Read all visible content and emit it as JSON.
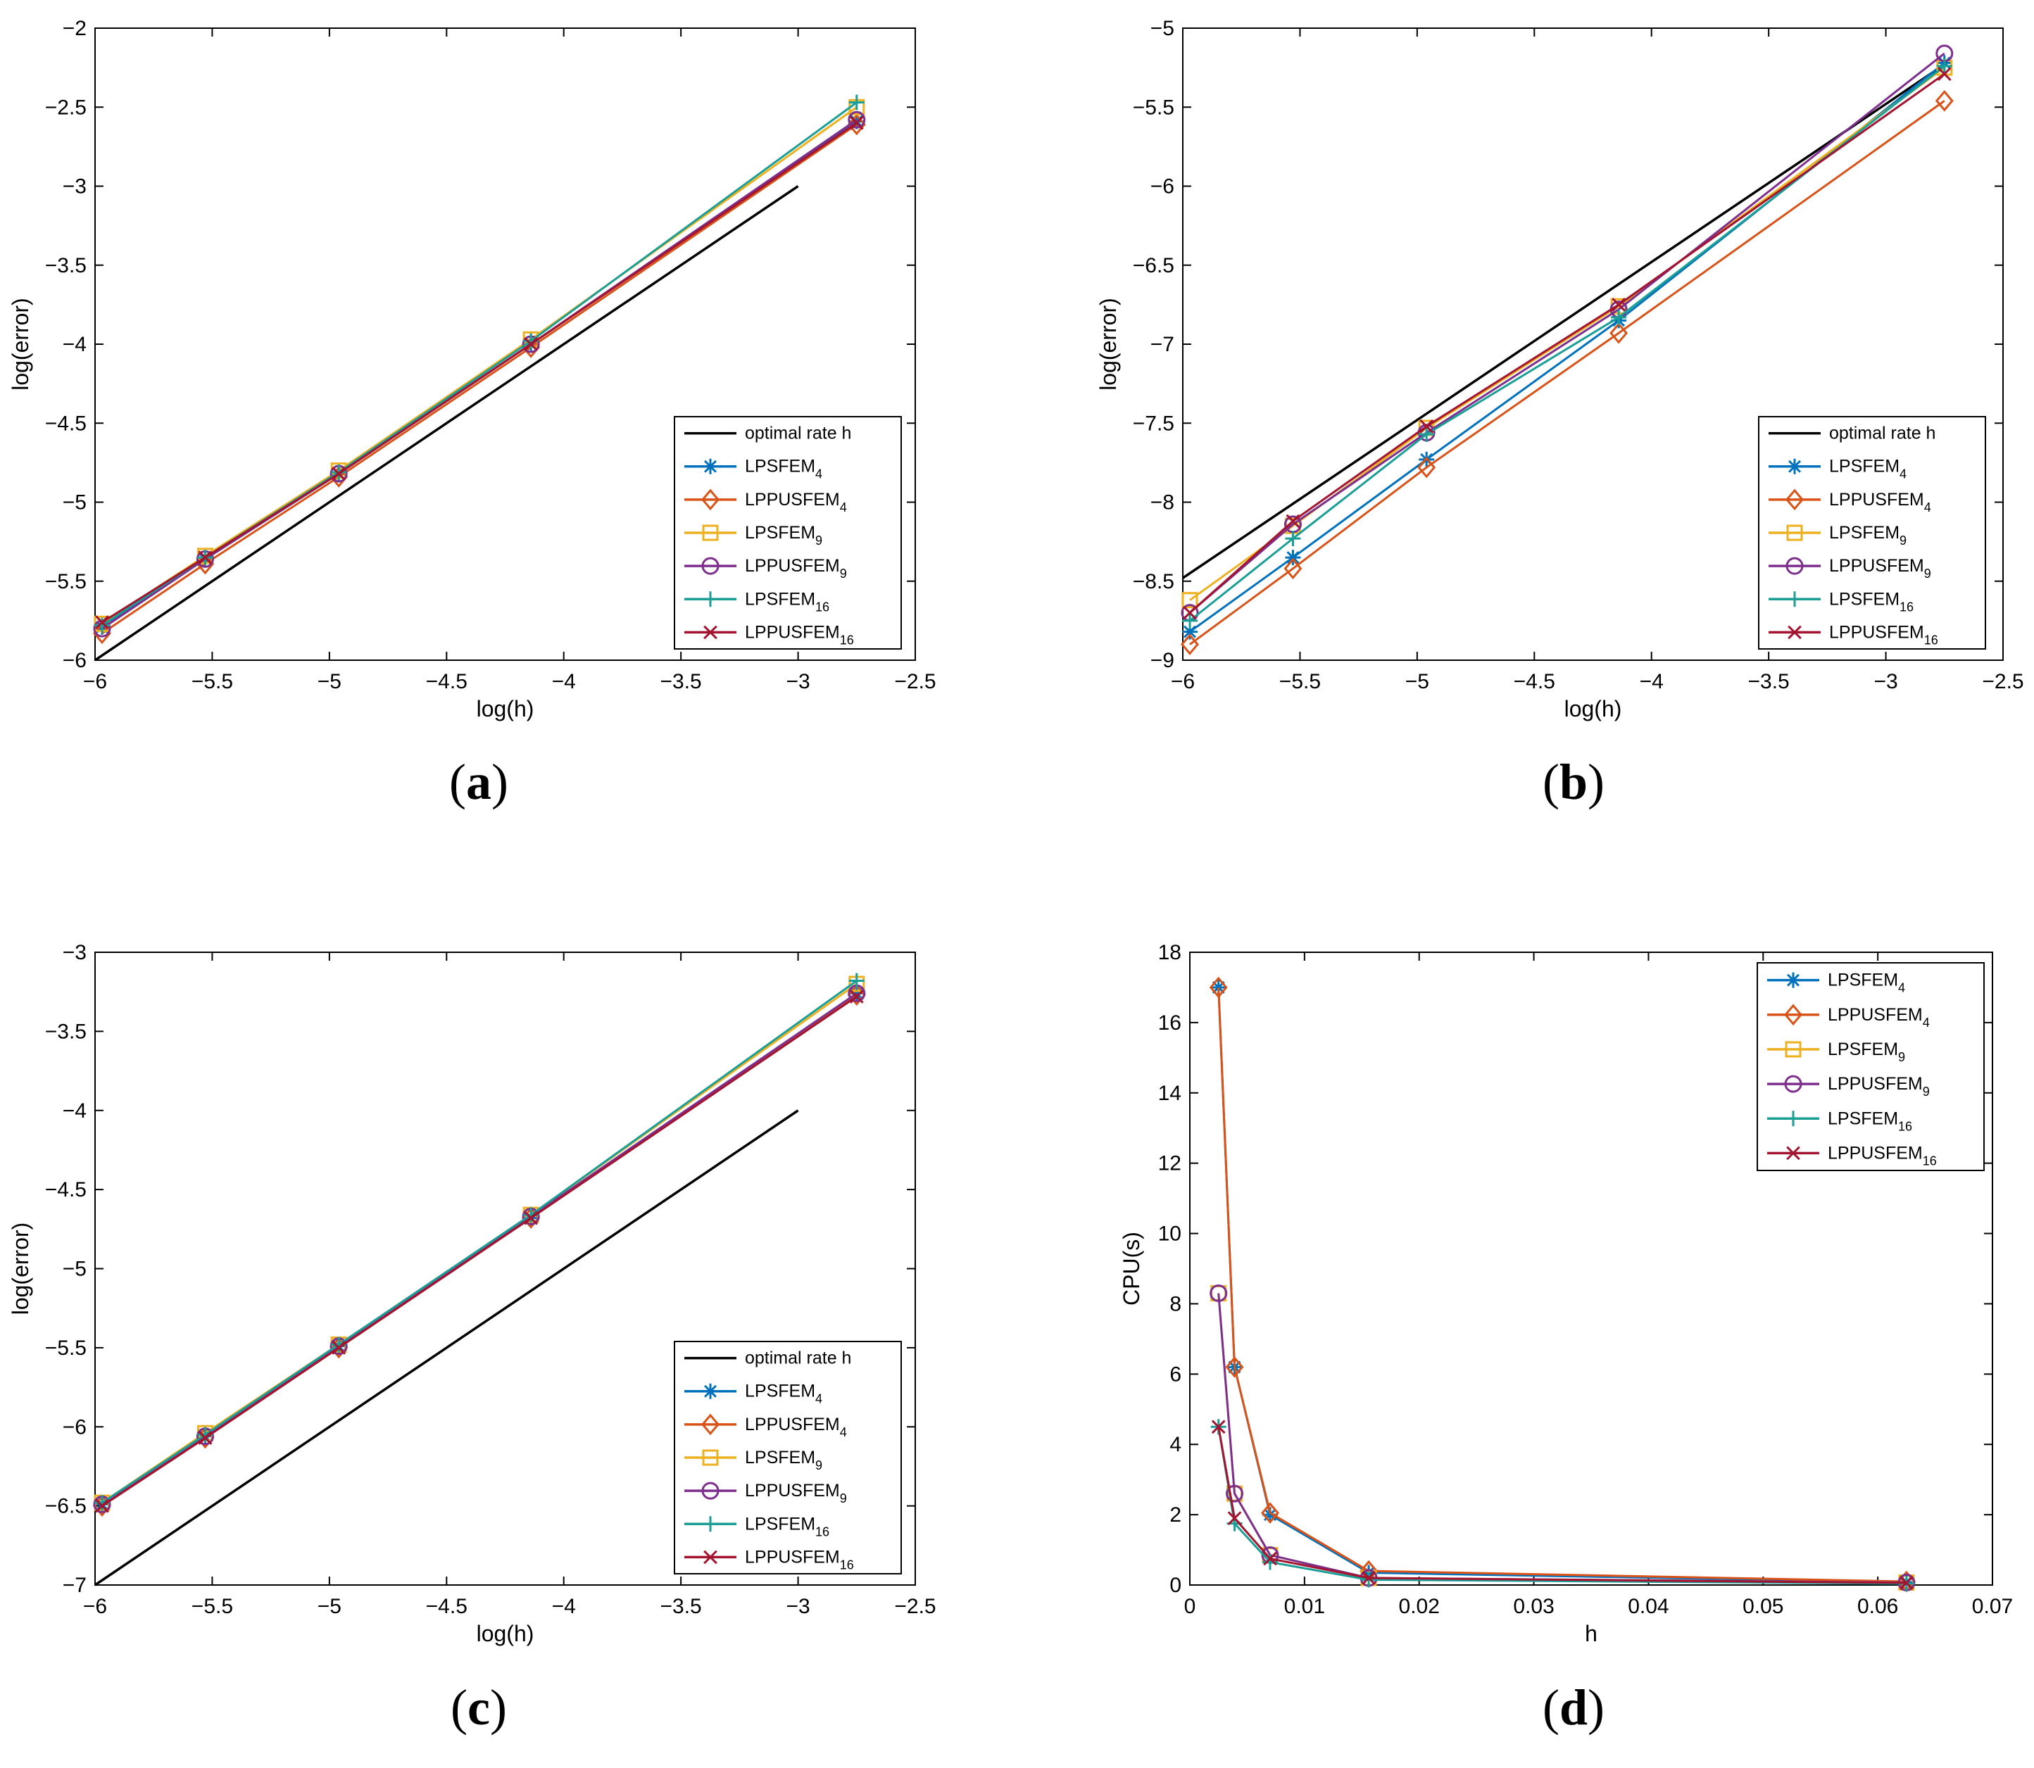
{
  "figure": {
    "panels": [
      "(a)",
      "(b)",
      "(c)",
      "(d)"
    ],
    "legend_labels": [
      "optimal rate h",
      "LPSFEM4",
      "LPPUSFEM4",
      "LPSFEM9",
      "LPPUSFEM9",
      "LPSFEM16",
      "LPPUSFEM16"
    ]
  },
  "colors": {
    "optimal": "#000000",
    "LPSFEM4": "#0072BD",
    "LPPUSFEM4": "#D95319",
    "LPSFEM9": "#EDB120",
    "LPPUSFEM9": "#7E2F8E",
    "LPSFEM16": "#1A9E96",
    "LPPUSFEM16": "#A2142F"
  },
  "chart_data": [
    {
      "panel": "a",
      "label": "(a)",
      "type": "line",
      "xlabel": "log(h)",
      "ylabel": "log(error)",
      "xlim": [
        -6,
        -2.5
      ],
      "ylim": [
        -6,
        -2
      ],
      "xticks": [
        -6,
        -5.5,
        -5,
        -4.5,
        -4,
        -3.5,
        -3,
        -2.5
      ],
      "yticks": [
        -6,
        -5.5,
        -5,
        -4.5,
        -4,
        -3.5,
        -3,
        -2.5,
        -2
      ],
      "xtick_labels": [
        "−6",
        "−5.5",
        "−5",
        "−4.5",
        "−4",
        "−3.5",
        "−3",
        "−2.5"
      ],
      "ytick_labels": [
        "−6",
        "−5.5",
        "−5",
        "−4.5",
        "−4",
        "−3.5",
        "−3",
        "−2.5",
        "−2"
      ],
      "legend_position": "bottom-right",
      "series": [
        {
          "name": "optimal rate h",
          "base": "optimal rate h",
          "sub": "",
          "marker": "none",
          "x": [
            -6,
            -3
          ],
          "y": [
            -6,
            -3
          ]
        },
        {
          "name": "LPSFEM4",
          "base": "LPSFEM",
          "sub": "4",
          "marker": "star",
          "x": [
            -5.97,
            -5.53,
            -4.96,
            -4.14,
            -2.75
          ],
          "y": [
            -5.79,
            -5.36,
            -4.82,
            -4.0,
            -2.59
          ]
        },
        {
          "name": "LPPUSFEM4",
          "base": "LPPUSFEM",
          "sub": "4",
          "marker": "diamond",
          "x": [
            -5.97,
            -5.53,
            -4.96,
            -4.14,
            -2.75
          ],
          "y": [
            -5.83,
            -5.39,
            -4.84,
            -4.02,
            -2.61
          ]
        },
        {
          "name": "LPSFEM9",
          "base": "LPSFEM",
          "sub": "9",
          "marker": "square",
          "x": [
            -5.97,
            -5.53,
            -4.96,
            -4.14,
            -2.75
          ],
          "y": [
            -5.77,
            -5.34,
            -4.8,
            -3.97,
            -2.5
          ]
        },
        {
          "name": "LPPUSFEM9",
          "base": "LPPUSFEM",
          "sub": "9",
          "marker": "circle",
          "x": [
            -5.97,
            -5.53,
            -4.96,
            -4.14,
            -2.75
          ],
          "y": [
            -5.8,
            -5.36,
            -4.82,
            -4.0,
            -2.58
          ]
        },
        {
          "name": "LPSFEM16",
          "base": "LPSFEM",
          "sub": "16",
          "marker": "plus",
          "x": [
            -5.97,
            -5.53,
            -4.96,
            -4.14,
            -2.75
          ],
          "y": [
            -5.78,
            -5.35,
            -4.81,
            -3.98,
            -2.47
          ]
        },
        {
          "name": "LPPUSFEM16",
          "base": "LPPUSFEM",
          "sub": "16",
          "marker": "x",
          "x": [
            -5.97,
            -5.53,
            -4.96,
            -4.14,
            -2.75
          ],
          "y": [
            -5.76,
            -5.35,
            -4.82,
            -4.0,
            -2.6
          ]
        }
      ]
    },
    {
      "panel": "b",
      "label": "(b)",
      "type": "line",
      "xlabel": "log(h)",
      "ylabel": "log(error)",
      "xlim": [
        -6,
        -2.5
      ],
      "ylim": [
        -9,
        -5
      ],
      "xticks": [
        -6,
        -5.5,
        -5,
        -4.5,
        -4,
        -3.5,
        -3,
        -2.5
      ],
      "yticks": [
        -9,
        -8.5,
        -8,
        -7.5,
        -7,
        -6.5,
        -6,
        -5.5,
        -5
      ],
      "xtick_labels": [
        "−6",
        "−5.5",
        "−5",
        "−4.5",
        "−4",
        "−3.5",
        "−3",
        "−2.5"
      ],
      "ytick_labels": [
        "−9",
        "−8.5",
        "−8",
        "−7.5",
        "−7",
        "−6.5",
        "−6",
        "−5.5",
        "−5"
      ],
      "legend_position": "bottom-right",
      "series": [
        {
          "name": "optimal rate h",
          "base": "optimal rate h",
          "sub": "",
          "marker": "none",
          "x": [
            -6,
            -2.75
          ],
          "y": [
            -8.48,
            -5.23
          ]
        },
        {
          "name": "LPSFEM4",
          "base": "LPSFEM",
          "sub": "4",
          "marker": "star",
          "x": [
            -5.97,
            -5.53,
            -4.96,
            -4.14,
            -2.75
          ],
          "y": [
            -8.82,
            -8.35,
            -7.73,
            -6.85,
            -5.22
          ]
        },
        {
          "name": "LPPUSFEM4",
          "base": "LPPUSFEM",
          "sub": "4",
          "marker": "diamond",
          "x": [
            -5.97,
            -5.53,
            -4.96,
            -4.14,
            -2.75
          ],
          "y": [
            -8.9,
            -8.42,
            -7.78,
            -6.93,
            -5.46
          ]
        },
        {
          "name": "LPSFEM9",
          "base": "LPSFEM",
          "sub": "9",
          "marker": "square",
          "x": [
            -5.97,
            -5.53,
            -4.96,
            -4.14,
            -2.75
          ],
          "y": [
            -8.62,
            -8.15,
            -7.53,
            -6.76,
            -5.25
          ]
        },
        {
          "name": "LPPUSFEM9",
          "base": "LPPUSFEM",
          "sub": "9",
          "marker": "circle",
          "x": [
            -5.97,
            -5.53,
            -4.96,
            -4.14,
            -2.75
          ],
          "y": [
            -8.7,
            -8.14,
            -7.56,
            -6.78,
            -5.16
          ]
        },
        {
          "name": "LPSFEM16",
          "base": "LPSFEM",
          "sub": "16",
          "marker": "plus",
          "x": [
            -5.97,
            -5.53,
            -4.96,
            -4.14,
            -2.75
          ],
          "y": [
            -8.75,
            -8.23,
            -7.57,
            -6.83,
            -5.24
          ]
        },
        {
          "name": "LPPUSFEM16",
          "base": "LPPUSFEM",
          "sub": "16",
          "marker": "x",
          "x": [
            -5.97,
            -5.53,
            -4.96,
            -4.14,
            -2.75
          ],
          "y": [
            -8.7,
            -8.12,
            -7.52,
            -6.75,
            -5.29
          ]
        }
      ]
    },
    {
      "panel": "c",
      "label": "(c)",
      "type": "line",
      "xlabel": "log(h)",
      "ylabel": "log(error)",
      "xlim": [
        -6,
        -2.5
      ],
      "ylim": [
        -7,
        -3
      ],
      "xticks": [
        -6,
        -5.5,
        -5,
        -4.5,
        -4,
        -3.5,
        -3,
        -2.5
      ],
      "yticks": [
        -7,
        -6.5,
        -6,
        -5.5,
        -5,
        -4.5,
        -4,
        -3.5,
        -3
      ],
      "xtick_labels": [
        "−6",
        "−5.5",
        "−5",
        "−4.5",
        "−4",
        "−3.5",
        "−3",
        "−2.5"
      ],
      "ytick_labels": [
        "−7",
        "−6.5",
        "−6",
        "−5.5",
        "−5",
        "−4.5",
        "−4",
        "−3.5",
        "−3"
      ],
      "legend_position": "bottom-right",
      "series": [
        {
          "name": "optimal rate h",
          "base": "optimal rate h",
          "sub": "",
          "marker": "none",
          "x": [
            -6,
            -3
          ],
          "y": [
            -7,
            -4
          ]
        },
        {
          "name": "LPSFEM4",
          "base": "LPSFEM",
          "sub": "4",
          "marker": "star",
          "x": [
            -5.97,
            -5.53,
            -4.96,
            -4.14,
            -2.75
          ],
          "y": [
            -6.49,
            -6.06,
            -5.49,
            -4.68,
            -3.26
          ]
        },
        {
          "name": "LPPUSFEM4",
          "base": "LPPUSFEM",
          "sub": "4",
          "marker": "diamond",
          "x": [
            -5.97,
            -5.53,
            -4.96,
            -4.14,
            -2.75
          ],
          "y": [
            -6.5,
            -6.07,
            -5.5,
            -4.68,
            -3.27
          ]
        },
        {
          "name": "LPSFEM9",
          "base": "LPSFEM",
          "sub": "9",
          "marker": "square",
          "x": [
            -5.97,
            -5.53,
            -4.96,
            -4.14,
            -2.75
          ],
          "y": [
            -6.48,
            -6.04,
            -5.48,
            -4.66,
            -3.2
          ]
        },
        {
          "name": "LPPUSFEM9",
          "base": "LPPUSFEM",
          "sub": "9",
          "marker": "circle",
          "x": [
            -5.97,
            -5.53,
            -4.96,
            -4.14,
            -2.75
          ],
          "y": [
            -6.49,
            -6.06,
            -5.49,
            -4.67,
            -3.26
          ]
        },
        {
          "name": "LPSFEM16",
          "base": "LPSFEM",
          "sub": "16",
          "marker": "plus",
          "x": [
            -5.97,
            -5.53,
            -4.96,
            -4.14,
            -2.75
          ],
          "y": [
            -6.48,
            -6.05,
            -5.48,
            -4.66,
            -3.18
          ]
        },
        {
          "name": "LPPUSFEM16",
          "base": "LPPUSFEM",
          "sub": "16",
          "marker": "x",
          "x": [
            -5.97,
            -5.53,
            -4.96,
            -4.14,
            -2.75
          ],
          "y": [
            -6.5,
            -6.07,
            -5.5,
            -4.68,
            -3.28
          ]
        }
      ]
    },
    {
      "panel": "d",
      "label": "(d)",
      "type": "line",
      "xlabel": "h",
      "ylabel": "CPU(s)",
      "xlim": [
        0,
        0.07
      ],
      "ylim": [
        0,
        18
      ],
      "xticks": [
        0,
        0.01,
        0.02,
        0.03,
        0.04,
        0.05,
        0.06,
        0.07
      ],
      "yticks": [
        0,
        2,
        4,
        6,
        8,
        10,
        12,
        14,
        16,
        18
      ],
      "xtick_labels": [
        "0",
        "0.01",
        "0.02",
        "0.03",
        "0.04",
        "0.05",
        "0.06",
        "0.07"
      ],
      "ytick_labels": [
        "0",
        "2",
        "4",
        "6",
        "8",
        "10",
        "12",
        "14",
        "16",
        "18"
      ],
      "legend_position": "top-right",
      "series": [
        {
          "name": "LPSFEM4",
          "base": "LPSFEM",
          "sub": "4",
          "marker": "star",
          "x": [
            0.0025,
            0.0039,
            0.007,
            0.0156,
            0.0625
          ],
          "y": [
            17.0,
            6.2,
            2.0,
            0.35,
            0.08
          ]
        },
        {
          "name": "LPPUSFEM4",
          "base": "LPPUSFEM",
          "sub": "4",
          "marker": "diamond",
          "x": [
            0.0025,
            0.0039,
            0.007,
            0.0156,
            0.0625
          ],
          "y": [
            17.0,
            6.2,
            2.05,
            0.4,
            0.1
          ]
        },
        {
          "name": "LPSFEM9",
          "base": "LPSFEM",
          "sub": "9",
          "marker": "square",
          "x": [
            0.0025,
            0.0039,
            0.007,
            0.0156,
            0.0625
          ],
          "y": [
            8.3,
            2.6,
            0.85,
            0.2,
            0.07
          ]
        },
        {
          "name": "LPPUSFEM9",
          "base": "LPPUSFEM",
          "sub": "9",
          "marker": "circle",
          "x": [
            0.0025,
            0.0039,
            0.007,
            0.0156,
            0.0625
          ],
          "y": [
            8.3,
            2.6,
            0.85,
            0.2,
            0.07
          ]
        },
        {
          "name": "LPSFEM16",
          "base": "LPSFEM",
          "sub": "16",
          "marker": "plus",
          "x": [
            0.0025,
            0.0039,
            0.007,
            0.0156,
            0.0625
          ],
          "y": [
            4.5,
            1.75,
            0.65,
            0.15,
            0.04
          ]
        },
        {
          "name": "LPPUSFEM16",
          "base": "LPPUSFEM",
          "sub": "16",
          "marker": "x",
          "x": [
            0.0025,
            0.0039,
            0.007,
            0.0156,
            0.0625
          ],
          "y": [
            4.5,
            1.9,
            0.75,
            0.2,
            0.06
          ]
        }
      ]
    }
  ]
}
